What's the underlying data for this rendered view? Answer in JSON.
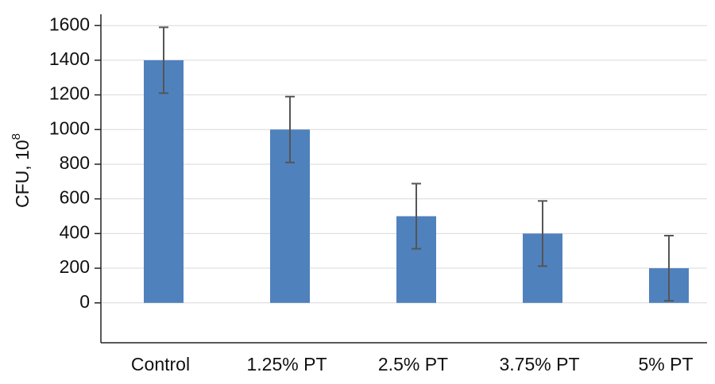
{
  "chart_data": {
    "type": "bar",
    "ylabel": "CFU, 10",
    "ylabel_exponent": "8",
    "categories": [
      "Control",
      "1.25% PT",
      "2.5% PT",
      "3.75% PT",
      "5% PT"
    ],
    "values": [
      1400,
      1000,
      500,
      400,
      200
    ],
    "errors": [
      190,
      190,
      188,
      188,
      188
    ],
    "color": "#4f81bd",
    "ylim": [
      -230,
      1665
    ],
    "yticks": [
      0,
      200,
      400,
      600,
      800,
      1000,
      1200,
      1400,
      1600
    ],
    "grid": true
  }
}
